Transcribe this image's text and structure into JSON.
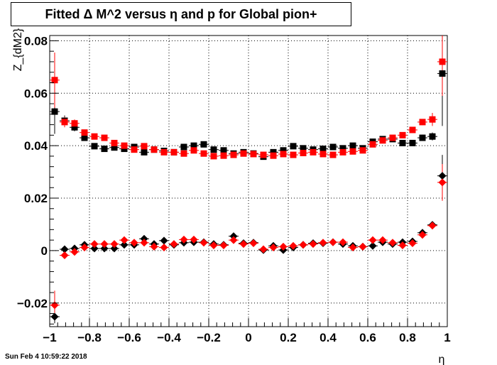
{
  "chart_data": {
    "type": "scatter",
    "title": "Fitted Δ M^2 versus η and p for Global pion+",
    "xlabel": "η",
    "ylabel": "Z_{dM2}",
    "xlim": [
      -1,
      1
    ],
    "ylim": [
      -0.029,
      0.082
    ],
    "x_ticks": [
      -1,
      -0.8,
      -0.6,
      -0.4,
      -0.2,
      0,
      0.2,
      0.4,
      0.6,
      0.8,
      1
    ],
    "x_tick_labels": [
      "−1",
      "−0.8",
      "−0.6",
      "−0.4",
      "−0.2",
      "0",
      "0.2",
      "0.4",
      "0.6",
      "0.8",
      "1"
    ],
    "y_ticks": [
      -0.02,
      0,
      0.02,
      0.04,
      0.06,
      0.08
    ],
    "y_tick_labels": [
      "−0.02",
      "0",
      "0.02",
      "0.04",
      "0.06",
      "0.08"
    ],
    "grid": true,
    "x": [
      -0.975,
      -0.925,
      -0.875,
      -0.825,
      -0.775,
      -0.725,
      -0.675,
      -0.625,
      -0.575,
      -0.525,
      -0.475,
      -0.425,
      -0.375,
      -0.325,
      -0.275,
      -0.225,
      -0.175,
      -0.125,
      -0.075,
      -0.025,
      0.025,
      0.075,
      0.125,
      0.175,
      0.225,
      0.275,
      0.325,
      0.375,
      0.425,
      0.475,
      0.525,
      0.575,
      0.625,
      0.675,
      0.725,
      0.775,
      0.825,
      0.875,
      0.925,
      0.975
    ],
    "series": [
      {
        "marker": "square",
        "color": "#000000",
        "values": [
          0.053,
          0.0495,
          0.047,
          0.043,
          0.0398,
          0.0388,
          0.0393,
          0.0388,
          0.0395,
          0.0375,
          0.0385,
          0.038,
          0.0375,
          0.0395,
          0.04,
          0.0405,
          0.0385,
          0.0382,
          0.037,
          0.0375,
          0.037,
          0.0358,
          0.0375,
          0.0382,
          0.0398,
          0.039,
          0.0385,
          0.0388,
          0.0395,
          0.039,
          0.04,
          0.039,
          0.0415,
          0.0425,
          0.0425,
          0.041,
          0.041,
          0.043,
          0.0435,
          0.0675
        ],
        "errors": [
          0.0085,
          0.002,
          0.0015,
          0.001,
          0.001,
          0.0008,
          0.0008,
          0.0008,
          0.0008,
          0.0008,
          0.0008,
          0.0008,
          0.0008,
          0.0008,
          0.0008,
          0.0008,
          0.0008,
          0.0008,
          0.0008,
          0.0008,
          0.0008,
          0.0008,
          0.0008,
          0.0008,
          0.0008,
          0.0008,
          0.0008,
          0.0008,
          0.0008,
          0.0008,
          0.0008,
          0.0008,
          0.0008,
          0.0008,
          0.0008,
          0.0008,
          0.001,
          0.0012,
          0.0015,
          0.02
        ]
      },
      {
        "marker": "square",
        "color": "#ff0000",
        "values": [
          0.065,
          0.049,
          0.0485,
          0.045,
          0.0435,
          0.043,
          0.041,
          0.04,
          0.0385,
          0.0398,
          0.0385,
          0.0375,
          0.0375,
          0.037,
          0.0382,
          0.037,
          0.036,
          0.0362,
          0.0365,
          0.037,
          0.0368,
          0.0365,
          0.0362,
          0.0368,
          0.0365,
          0.0372,
          0.0375,
          0.0368,
          0.0365,
          0.0375,
          0.0378,
          0.0382,
          0.0405,
          0.042,
          0.043,
          0.044,
          0.046,
          0.049,
          0.05,
          0.072
        ],
        "errors": [
          0.0105,
          0.002,
          0.0015,
          0.001,
          0.001,
          0.0008,
          0.0008,
          0.0008,
          0.0008,
          0.0008,
          0.0008,
          0.0008,
          0.0008,
          0.0008,
          0.0008,
          0.0008,
          0.0008,
          0.0008,
          0.0008,
          0.0008,
          0.0008,
          0.0008,
          0.0008,
          0.0008,
          0.0008,
          0.0008,
          0.0008,
          0.0008,
          0.0008,
          0.0008,
          0.0008,
          0.0008,
          0.0008,
          0.0008,
          0.0008,
          0.0008,
          0.001,
          0.0012,
          0.0025,
          0.013
        ]
      },
      {
        "marker": "diamond",
        "color": "#000000",
        "values": [
          -0.0252,
          0.0005,
          0.0008,
          0.0022,
          0.0008,
          0.0008,
          0.0008,
          0.0022,
          0.0022,
          0.0045,
          0.0025,
          0.0038,
          0.0022,
          0.003,
          0.0032,
          0.0032,
          0.0025,
          0.0022,
          0.0055,
          0.0028,
          0.003,
          0.0002,
          0.0018,
          0.0002,
          0.0012,
          0.0022,
          0.0028,
          0.0028,
          0.0032,
          0.0025,
          0.0018,
          0.0015,
          0.0018,
          0.0032,
          0.0025,
          0.0032,
          0.0035,
          0.0068,
          0.0098,
          0.0285
        ],
        "errors": [
          0.0025,
          0.001,
          0.0008,
          0.0006,
          0.0005,
          0.0005,
          0.0005,
          0.0005,
          0.0005,
          0.0005,
          0.0005,
          0.0005,
          0.0005,
          0.0005,
          0.0005,
          0.0005,
          0.0005,
          0.0005,
          0.0005,
          0.0005,
          0.0005,
          0.0005,
          0.0005,
          0.0005,
          0.0005,
          0.0005,
          0.0005,
          0.0005,
          0.0005,
          0.0005,
          0.0005,
          0.0005,
          0.0005,
          0.0005,
          0.0005,
          0.0005,
          0.0006,
          0.0008,
          0.001,
          0.008
        ]
      },
      {
        "marker": "diamond",
        "color": "#ff0000",
        "values": [
          -0.0208,
          -0.0018,
          -0.0005,
          0.0012,
          0.0025,
          0.0025,
          0.0025,
          0.004,
          0.003,
          0.003,
          0.0015,
          0.0012,
          0.0025,
          0.0042,
          0.0042,
          0.003,
          0.002,
          0.002,
          0.004,
          0.0025,
          0.0028,
          0.0005,
          0.0012,
          0.0015,
          0.0018,
          0.0022,
          0.0025,
          0.003,
          0.0032,
          0.0032,
          0.0012,
          0.0015,
          0.004,
          0.004,
          0.003,
          0.002,
          0.0028,
          0.006,
          0.0095,
          0.026
        ],
        "errors": [
          0.0055,
          0.001,
          0.0008,
          0.0006,
          0.0005,
          0.0005,
          0.0005,
          0.0005,
          0.0005,
          0.0005,
          0.0005,
          0.0005,
          0.0005,
          0.0005,
          0.0005,
          0.0005,
          0.0005,
          0.0005,
          0.0005,
          0.0005,
          0.0005,
          0.0005,
          0.0005,
          0.0005,
          0.0005,
          0.0005,
          0.0005,
          0.0005,
          0.0005,
          0.0005,
          0.0005,
          0.0005,
          0.0005,
          0.0005,
          0.0005,
          0.0005,
          0.0006,
          0.0008,
          0.001,
          0.007
        ]
      }
    ]
  },
  "footer": {
    "timestamp": "Sun Feb  4 10:59:22 2018"
  }
}
